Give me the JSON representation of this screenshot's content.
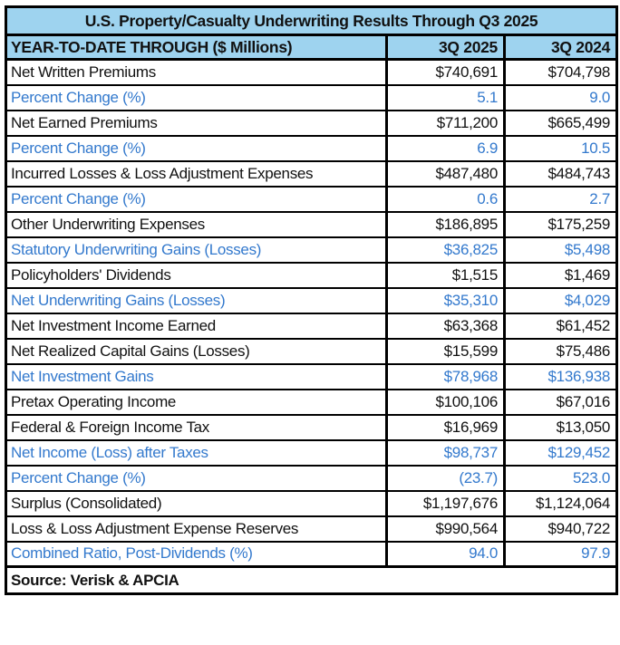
{
  "colors": {
    "header_bg": "#9ED3EF",
    "accent_text": "#3379CD",
    "border": "#000000",
    "text": "#111111"
  },
  "chart_data": {
    "type": "table",
    "title": "U.S. Property/Casualty Underwriting Results Through Q3 2025",
    "columns": [
      "YEAR-TO-DATE THROUGH ($ Millions)",
      "3Q 2025",
      "3Q 2024"
    ],
    "rows": [
      {
        "label": "Net Written Premiums",
        "values": [
          "$740,691",
          "$704,798"
        ],
        "emphasis": "black"
      },
      {
        "label": "Percent Change (%)",
        "values": [
          "5.1",
          "9.0"
        ],
        "emphasis": "blue"
      },
      {
        "label": "Net Earned Premiums",
        "values": [
          "$711,200",
          "$665,499"
        ],
        "emphasis": "black"
      },
      {
        "label": "Percent Change (%)",
        "values": [
          "6.9",
          "10.5"
        ],
        "emphasis": "blue"
      },
      {
        "label": "Incurred Losses & Loss Adjustment Expenses",
        "values": [
          "$487,480",
          "$484,743"
        ],
        "emphasis": "black"
      },
      {
        "label": "Percent Change (%)",
        "values": [
          "0.6",
          "2.7"
        ],
        "emphasis": "blue"
      },
      {
        "label": "Other Underwriting Expenses",
        "values": [
          "$186,895",
          "$175,259"
        ],
        "emphasis": "black"
      },
      {
        "label": "Statutory Underwriting Gains (Losses)",
        "values": [
          "$36,825",
          "$5,498"
        ],
        "emphasis": "blue"
      },
      {
        "label": "Policyholders' Dividends",
        "values": [
          "$1,515",
          "$1,469"
        ],
        "emphasis": "black"
      },
      {
        "label": "Net Underwriting Gains (Losses)",
        "values": [
          "$35,310",
          "$4,029"
        ],
        "emphasis": "blue"
      },
      {
        "label": "Net Investment Income Earned",
        "values": [
          "$63,368",
          "$61,452"
        ],
        "emphasis": "black"
      },
      {
        "label": "Net Realized Capital Gains (Losses)",
        "values": [
          "$15,599",
          "$75,486"
        ],
        "emphasis": "black"
      },
      {
        "label": "Net Investment Gains",
        "values": [
          "$78,968",
          "$136,938"
        ],
        "emphasis": "blue"
      },
      {
        "label": "Pretax Operating Income",
        "values": [
          "$100,106",
          "$67,016"
        ],
        "emphasis": "black"
      },
      {
        "label": "Federal & Foreign Income Tax",
        "values": [
          "$16,969",
          "$13,050"
        ],
        "emphasis": "black"
      },
      {
        "label": "Net Income (Loss) after Taxes",
        "values": [
          "$98,737",
          "$129,452"
        ],
        "emphasis": "blue"
      },
      {
        "label": "Percent Change (%)",
        "values": [
          "(23.7)",
          "523.0"
        ],
        "emphasis": "blue"
      },
      {
        "label": "Surplus (Consolidated)",
        "values": [
          "$1,197,676",
          "$1,124,064"
        ],
        "emphasis": "black"
      },
      {
        "label": "Loss & Loss Adjustment Expense Reserves",
        "values": [
          "$990,564",
          "$940,722"
        ],
        "emphasis": "black"
      },
      {
        "label": "Combined Ratio, Post-Dividends (%)",
        "values": [
          "94.0",
          "97.9"
        ],
        "emphasis": "blue"
      }
    ],
    "source": "Source: Verisk & APCIA",
    "legend_position": "none",
    "grid": true
  }
}
